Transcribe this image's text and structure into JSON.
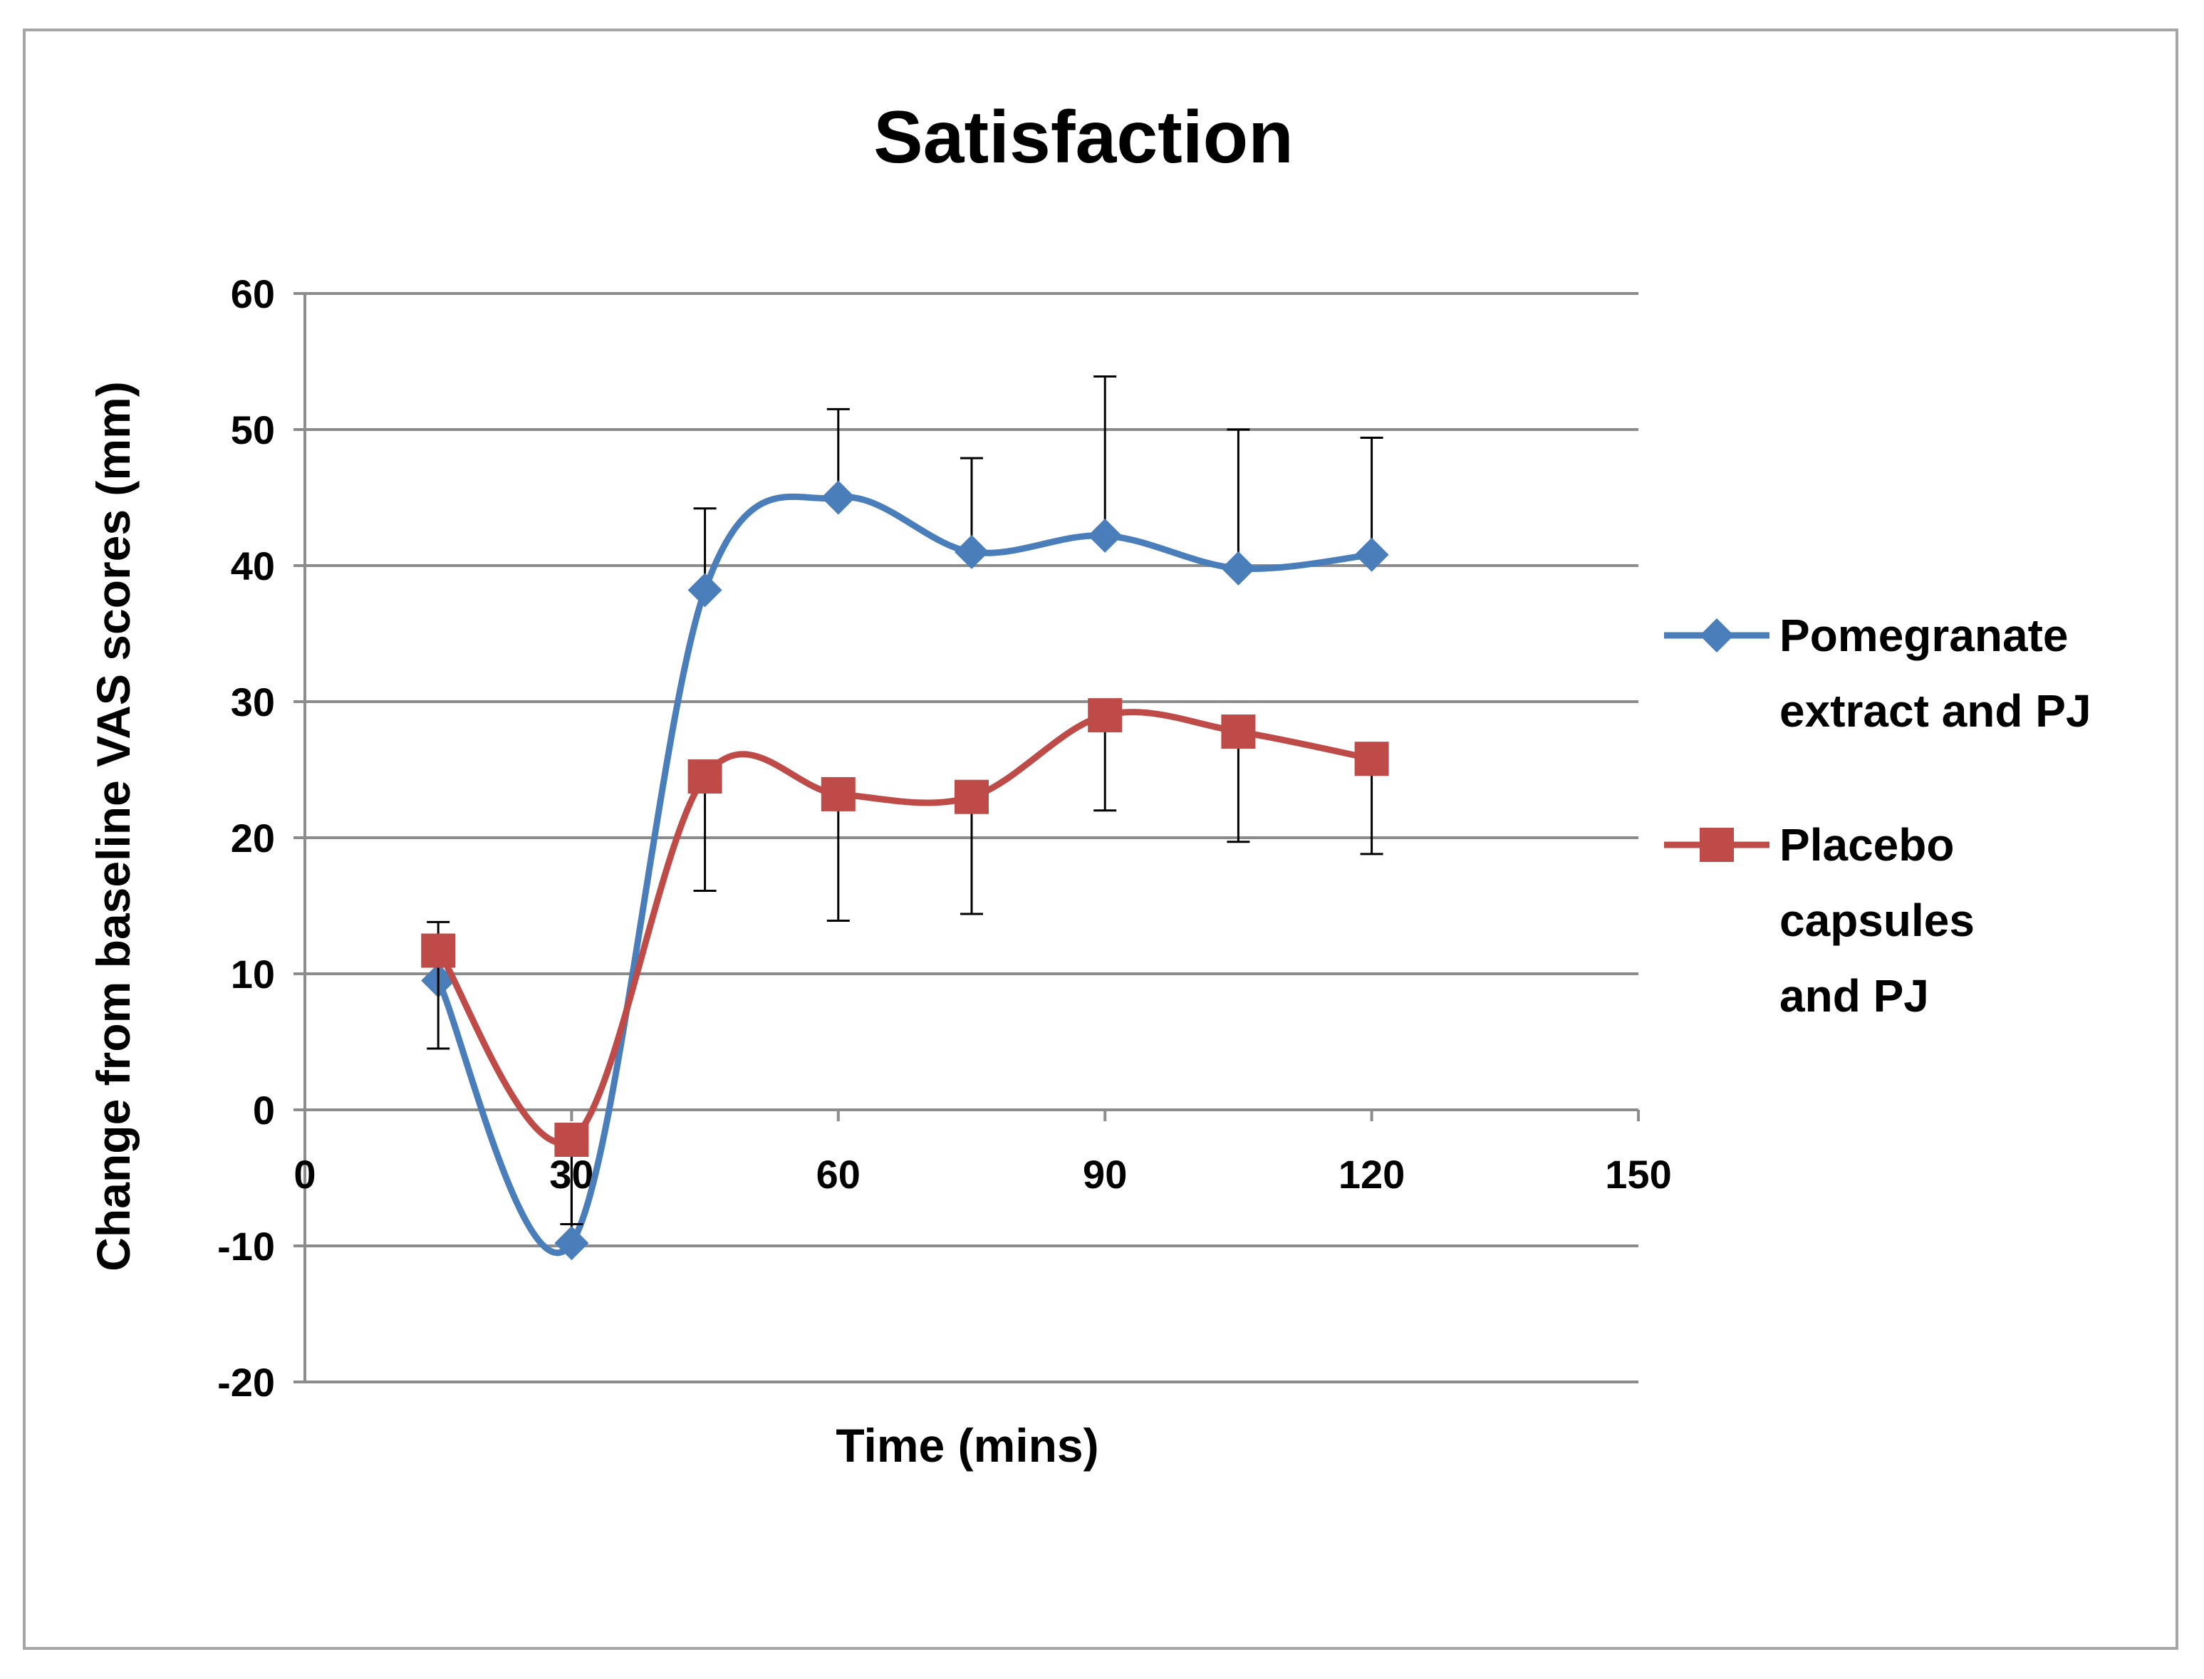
{
  "chart_data": {
    "type": "line",
    "title": "Satisfaction",
    "xlabel": "Time (mins)",
    "ylabel": "Change from baseline VAS scores (mm)",
    "xlim": [
      0,
      150
    ],
    "ylim": [
      -20,
      60
    ],
    "x_ticks": [
      0,
      30,
      60,
      90,
      120,
      150
    ],
    "x_tick_labels": [
      "0",
      "30",
      "60",
      "90",
      "120",
      "150"
    ],
    "y_ticks": [
      -20,
      -10,
      0,
      10,
      20,
      30,
      40,
      50,
      60
    ],
    "y_tick_labels": [
      "-20",
      "-10",
      "0",
      "10",
      "20",
      "30",
      "40",
      "50",
      "60"
    ],
    "grid": true,
    "smooth": true,
    "legend_position": "right",
    "x": [
      15,
      30,
      45,
      60,
      75,
      90,
      105,
      120
    ],
    "series": [
      {
        "name": "Pomegranate extract and PJ",
        "legend_lines": [
          "Pomegranate",
          "extract and PJ"
        ],
        "color": "#4a7ebb",
        "marker": "diamond",
        "values": [
          9.5,
          -9.8,
          38.2,
          45.0,
          41.0,
          42.2,
          39.8,
          40.8
        ],
        "error_upper": [
          4.3,
          8.6,
          6.0,
          6.5,
          6.9,
          11.7,
          10.2,
          8.6
        ],
        "error_lower": [
          0,
          0,
          0,
          0,
          0,
          0,
          0,
          0
        ]
      },
      {
        "name": "Placebo capsules and PJ",
        "legend_lines": [
          "Placebo",
          "capsules",
          "and PJ"
        ],
        "color": "#be4b48",
        "marker": "square",
        "values": [
          11.7,
          -2.2,
          24.5,
          23.2,
          23.0,
          29.0,
          27.8,
          25.8
        ],
        "error_upper": [
          0,
          0,
          0,
          0,
          0,
          0,
          0,
          0
        ],
        "error_lower": [
          7.2,
          6.2,
          8.4,
          9.3,
          8.6,
          7.0,
          8.1,
          7.0
        ]
      }
    ]
  }
}
